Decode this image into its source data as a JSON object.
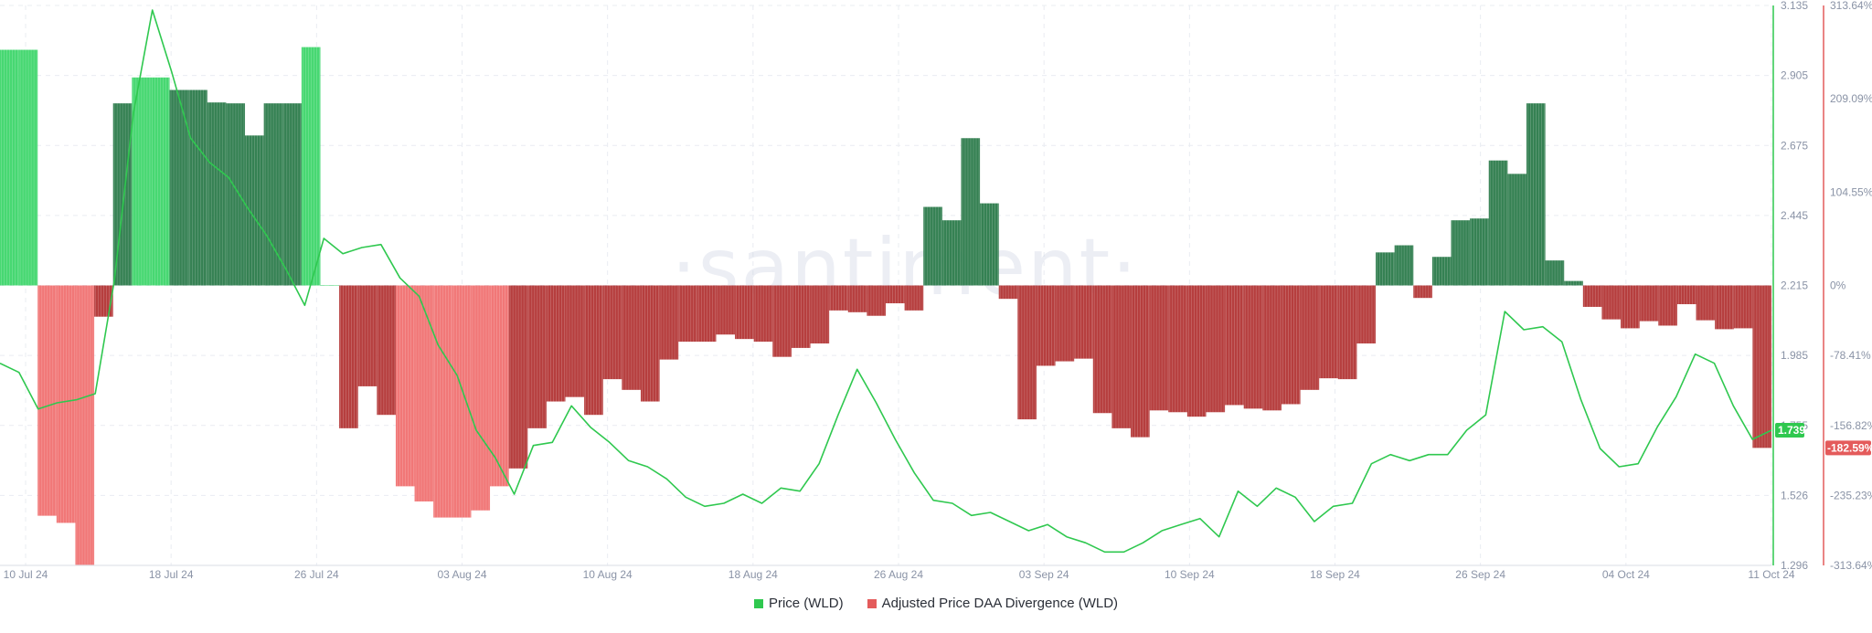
{
  "colors": {
    "price": "#2fc84f",
    "divergence_positive": "#3dd66a",
    "divergence_positive_dark": "#2a7a4a",
    "divergence_negative": "#f07070",
    "divergence_negative_dark": "#b23434",
    "price_axis": "#2fc84f",
    "divergence_axis": "#e45b5b",
    "grid": "#e9ecf2"
  },
  "watermark": "·santiment·",
  "legend": {
    "price_label": "Price (WLD)",
    "divergence_label": "Adjusted Price DAA Divergence (WLD)"
  },
  "current": {
    "price_label": "1.739",
    "divergence_label": "-182.59%"
  },
  "chart_data": {
    "type": "bar",
    "title": "",
    "x_axis": {
      "start": "2024-07-10",
      "end": "2024-10-11",
      "tick_labels": [
        "10 Jul 24",
        "18 Jul 24",
        "26 Jul 24",
        "03 Aug 24",
        "10 Aug 24",
        "18 Aug 24",
        "26 Aug 24",
        "03 Sep 24",
        "10 Sep 24",
        "18 Sep 24",
        "26 Sep 24",
        "04 Oct 24",
        "11 Oct 24"
      ]
    },
    "y_price_axis": {
      "ylim": [
        1.296,
        3.135
      ],
      "tick_labels": [
        "3.135",
        "2.905",
        "2.675",
        "2.445",
        "2.215",
        "1.985",
        "1.755",
        "1.526",
        "1.296"
      ]
    },
    "y_divergence_axis": {
      "ylim": [
        -313.64,
        313.64
      ],
      "tick_labels": [
        "313.64%",
        "209.09%",
        "104.55%",
        "0%",
        "-78.41%",
        "-156.82%",
        "-235.23%",
        "-313.64%"
      ]
    },
    "series": [
      {
        "name": "Adjusted Price DAA Divergence (WLD)",
        "type": "bar",
        "unit": "%",
        "x": [
          "2024-07-10",
          "2024-07-11",
          "2024-07-12",
          "2024-07-13",
          "2024-07-14",
          "2024-07-15",
          "2024-07-16",
          "2024-07-17",
          "2024-07-18",
          "2024-07-19",
          "2024-07-20",
          "2024-07-21",
          "2024-07-22",
          "2024-07-23",
          "2024-07-24",
          "2024-07-25",
          "2024-07-26",
          "2024-07-27",
          "2024-07-28",
          "2024-07-29",
          "2024-07-30",
          "2024-07-31",
          "2024-08-01",
          "2024-08-02",
          "2024-08-03",
          "2024-08-04",
          "2024-08-05",
          "2024-08-06",
          "2024-08-07",
          "2024-08-08",
          "2024-08-09",
          "2024-08-10",
          "2024-08-11",
          "2024-08-12",
          "2024-08-13",
          "2024-08-14",
          "2024-08-15",
          "2024-08-16",
          "2024-08-17",
          "2024-08-18",
          "2024-08-19",
          "2024-08-20",
          "2024-08-21",
          "2024-08-22",
          "2024-08-23",
          "2024-08-24",
          "2024-08-25",
          "2024-08-26",
          "2024-08-27",
          "2024-08-28",
          "2024-08-29",
          "2024-08-30",
          "2024-08-31",
          "2024-09-01",
          "2024-09-02",
          "2024-09-03",
          "2024-09-04",
          "2024-09-05",
          "2024-09-06",
          "2024-09-07",
          "2024-09-08",
          "2024-09-09",
          "2024-09-10",
          "2024-09-11",
          "2024-09-12",
          "2024-09-13",
          "2024-09-14",
          "2024-09-15",
          "2024-09-16",
          "2024-09-17",
          "2024-09-18",
          "2024-09-19",
          "2024-09-20",
          "2024-09-21",
          "2024-09-22",
          "2024-09-23",
          "2024-09-24",
          "2024-09-25",
          "2024-09-26",
          "2024-09-27",
          "2024-09-28",
          "2024-09-29",
          "2024-09-30",
          "2024-10-01",
          "2024-10-02",
          "2024-10-03",
          "2024-10-04",
          "2024-10-05",
          "2024-10-06",
          "2024-10-07",
          "2024-10-08",
          "2024-10-09",
          "2024-10-10",
          "2024-10-11"
        ],
        "values": [
          264,
          264,
          -258,
          -266,
          -313,
          -35,
          204,
          233,
          233,
          219,
          219,
          205,
          204,
          168,
          204,
          204,
          267,
          0,
          -160,
          -113,
          -145,
          -225,
          -242,
          -260,
          -260,
          -252,
          -225,
          -205,
          -160,
          -130,
          -125,
          -145,
          -105,
          -117,
          -130,
          -83,
          -63,
          -63,
          -55,
          -60,
          -63,
          -80,
          -70,
          -65,
          -28,
          -30,
          -34,
          -20,
          -28,
          88,
          73,
          165,
          92,
          -15,
          -150,
          -90,
          -85,
          -82,
          -143,
          -160,
          -170,
          -140,
          -142,
          -147,
          -142,
          -134,
          -138,
          -140,
          -133,
          -117,
          -104,
          -105,
          -65,
          37,
          45,
          -14,
          32,
          73,
          75,
          140,
          125,
          204,
          28,
          5,
          -24,
          -38,
          -48,
          -40,
          -45,
          -21,
          -39,
          -49,
          -48,
          -182
        ],
        "colors_by_bar": [
          "pos",
          "pos",
          "neg",
          "neg",
          "neg",
          "negd",
          "posd",
          "pos",
          "pos",
          "posd",
          "posd",
          "posd",
          "posd",
          "posd",
          "posd",
          "posd",
          "pos",
          "pos",
          "negd",
          "negd",
          "negd",
          "neg",
          "neg",
          "neg",
          "neg",
          "neg",
          "neg",
          "negd",
          "negd",
          "negd",
          "negd",
          "negd",
          "negd",
          "negd",
          "negd",
          "negd",
          "negd",
          "negd",
          "negd",
          "negd",
          "negd",
          "negd",
          "negd",
          "negd",
          "negd",
          "negd",
          "negd",
          "negd",
          "negd",
          "posd",
          "posd",
          "posd",
          "posd",
          "negd",
          "negd",
          "negd",
          "negd",
          "negd",
          "negd",
          "negd",
          "negd",
          "negd",
          "negd",
          "negd",
          "negd",
          "negd",
          "negd",
          "negd",
          "negd",
          "negd",
          "negd",
          "negd",
          "negd",
          "posd",
          "posd",
          "negd",
          "posd",
          "posd",
          "posd",
          "posd",
          "posd",
          "posd",
          "posd",
          "posd",
          "negd",
          "negd",
          "negd",
          "negd",
          "negd",
          "negd",
          "negd",
          "negd",
          "negd",
          "negd"
        ]
      },
      {
        "name": "Price (WLD)",
        "type": "line",
        "unit": "USD",
        "x": [
          "2024-07-10",
          "2024-07-11",
          "2024-07-12",
          "2024-07-13",
          "2024-07-14",
          "2024-07-15",
          "2024-07-16",
          "2024-07-17",
          "2024-07-18",
          "2024-07-19",
          "2024-07-20",
          "2024-07-21",
          "2024-07-22",
          "2024-07-23",
          "2024-07-24",
          "2024-07-25",
          "2024-07-26",
          "2024-07-27",
          "2024-07-28",
          "2024-07-29",
          "2024-07-30",
          "2024-07-31",
          "2024-08-01",
          "2024-08-02",
          "2024-08-03",
          "2024-08-04",
          "2024-08-05",
          "2024-08-06",
          "2024-08-07",
          "2024-08-08",
          "2024-08-09",
          "2024-08-10",
          "2024-08-11",
          "2024-08-12",
          "2024-08-13",
          "2024-08-14",
          "2024-08-15",
          "2024-08-16",
          "2024-08-17",
          "2024-08-18",
          "2024-08-19",
          "2024-08-20",
          "2024-08-21",
          "2024-08-22",
          "2024-08-23",
          "2024-08-24",
          "2024-08-25",
          "2024-08-26",
          "2024-08-27",
          "2024-08-28",
          "2024-08-29",
          "2024-08-30",
          "2024-08-31",
          "2024-09-01",
          "2024-09-02",
          "2024-09-03",
          "2024-09-04",
          "2024-09-05",
          "2024-09-06",
          "2024-09-07",
          "2024-09-08",
          "2024-09-09",
          "2024-09-10",
          "2024-09-11",
          "2024-09-12",
          "2024-09-13",
          "2024-09-14",
          "2024-09-15",
          "2024-09-16",
          "2024-09-17",
          "2024-09-18",
          "2024-09-19",
          "2024-09-20",
          "2024-09-21",
          "2024-09-22",
          "2024-09-23",
          "2024-09-24",
          "2024-09-25",
          "2024-09-26",
          "2024-09-27",
          "2024-09-28",
          "2024-09-29",
          "2024-09-30",
          "2024-10-01",
          "2024-10-02",
          "2024-10-03",
          "2024-10-04",
          "2024-10-05",
          "2024-10-06",
          "2024-10-07",
          "2024-10-08",
          "2024-10-09",
          "2024-10-10",
          "2024-10-11"
        ],
        "values": [
          1.96,
          1.93,
          1.81,
          1.83,
          1.84,
          1.86,
          2.23,
          2.78,
          3.12,
          2.92,
          2.7,
          2.62,
          2.57,
          2.47,
          2.38,
          2.27,
          2.15,
          2.37,
          2.32,
          2.34,
          2.35,
          2.24,
          2.18,
          2.02,
          1.92,
          1.74,
          1.65,
          1.53,
          1.69,
          1.7,
          1.82,
          1.75,
          1.7,
          1.64,
          1.62,
          1.58,
          1.52,
          1.49,
          1.5,
          1.53,
          1.5,
          1.55,
          1.54,
          1.63,
          1.79,
          1.94,
          1.83,
          1.71,
          1.6,
          1.51,
          1.5,
          1.46,
          1.47,
          1.44,
          1.41,
          1.43,
          1.39,
          1.37,
          1.34,
          1.34,
          1.37,
          1.41,
          1.43,
          1.45,
          1.39,
          1.54,
          1.49,
          1.55,
          1.52,
          1.44,
          1.49,
          1.5,
          1.63,
          1.66,
          1.64,
          1.66,
          1.66,
          1.74,
          1.79,
          2.13,
          2.07,
          2.08,
          2.03,
          1.84,
          1.68,
          1.62,
          1.63,
          1.75,
          1.85,
          1.99,
          1.96,
          1.82,
          1.71,
          1.74
        ]
      }
    ],
    "grid": true,
    "legend_position": "bottom-center"
  }
}
